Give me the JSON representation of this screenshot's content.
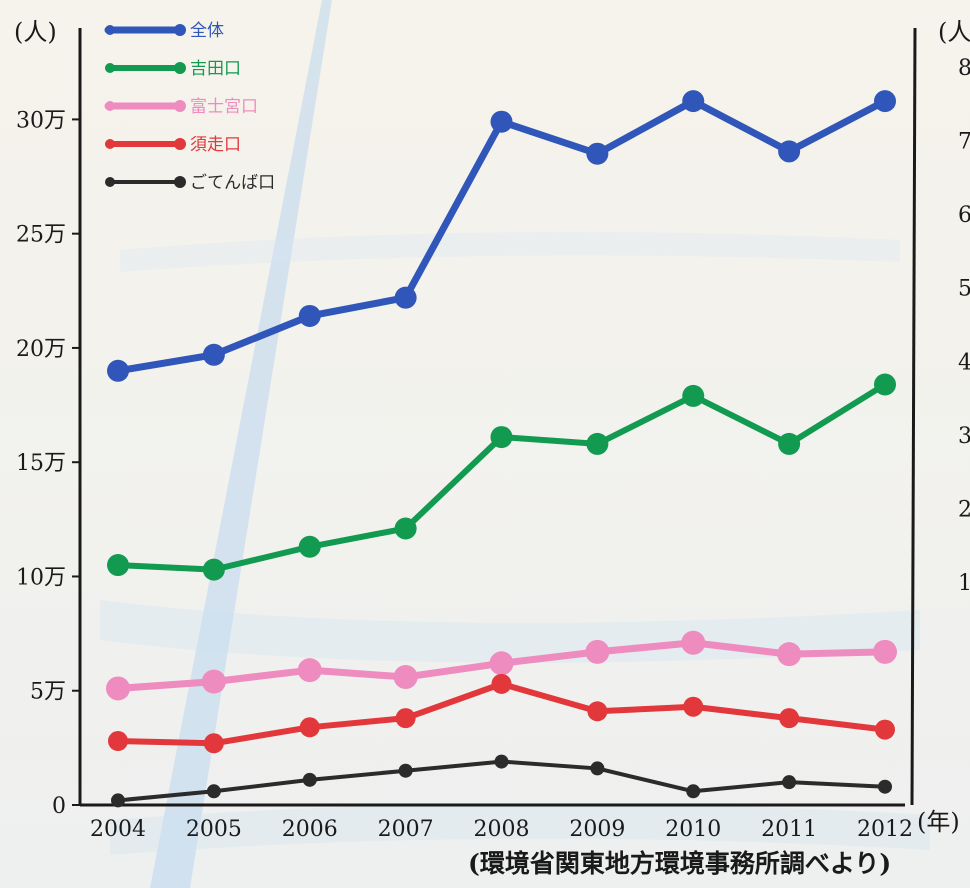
{
  "chart_data": {
    "type": "line",
    "y_unit_label": "(人)",
    "x_unit_label": "(年)",
    "right_axis_unit_label": "(人",
    "right_axis_tick_labels": [
      "8",
      "7",
      "6",
      "5",
      "4",
      "3",
      "2",
      "1"
    ],
    "x": [
      "2004",
      "2005",
      "2006",
      "2007",
      "2008",
      "2009",
      "2010",
      "2011",
      "2012"
    ],
    "y_ticks": [
      {
        "value": 0,
        "label": "0"
      },
      {
        "value": 50000,
        "label": "5万"
      },
      {
        "value": 100000,
        "label": "10万"
      },
      {
        "value": 150000,
        "label": "15万"
      },
      {
        "value": 200000,
        "label": "20万"
      },
      {
        "value": 250000,
        "label": "25万"
      },
      {
        "value": 300000,
        "label": "30万"
      }
    ],
    "ylim": [
      0,
      340000
    ],
    "source": "(環境省関東地方環境事務所調べより)",
    "legend_position": "top-left",
    "series": [
      {
        "name": "全体",
        "color": "#2f56b8",
        "values": [
          190000,
          197000,
          214000,
          222000,
          299000,
          285000,
          308000,
          286000,
          308000
        ]
      },
      {
        "name": "吉田口",
        "color": "#119a50",
        "values": [
          105000,
          103000,
          113000,
          121000,
          161000,
          158000,
          179000,
          158000,
          184000
        ]
      },
      {
        "name": "富士宮口",
        "color": "#ee8cc0",
        "values": [
          51000,
          54000,
          59000,
          56000,
          62000,
          67000,
          71000,
          66000,
          67000
        ]
      },
      {
        "name": "須走口",
        "color": "#e2383c",
        "values": [
          28000,
          27000,
          34000,
          38000,
          53000,
          41000,
          43000,
          38000,
          33000
        ]
      },
      {
        "name": "ごてんば口",
        "color": "#2b2b2b",
        "values": [
          2000,
          6000,
          11000,
          15000,
          19000,
          16000,
          6000,
          10000,
          8000
        ]
      }
    ]
  }
}
